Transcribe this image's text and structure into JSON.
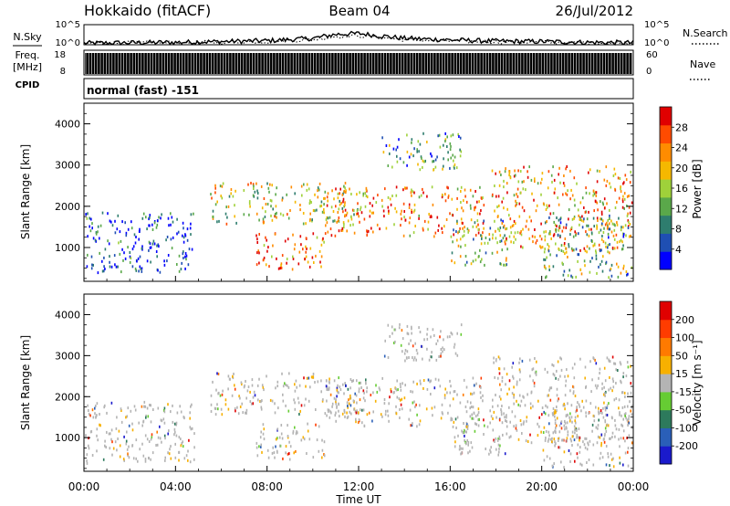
{
  "header": {
    "station": "Hokkaido (fitACF)",
    "beam": "Beam 04",
    "date": "26/Jul/2012"
  },
  "left_labels": {
    "nsky": "N.Sky",
    "freq_line1": "Freq.",
    "freq_line2": "[MHz]",
    "cpid": "CPID"
  },
  "right_labels": {
    "nsearch": "N.Search",
    "nave": "Nave"
  },
  "mode_text": "normal (fast) -151",
  "colors": {
    "power": [
      "#0000ff",
      "#1f4fb3",
      "#2e7d6e",
      "#5aa84a",
      "#9fd13a",
      "#f5b800",
      "#ff8c00",
      "#ff4b00",
      "#e00000"
    ],
    "velocity": [
      "#1a1acc",
      "#2a5fb8",
      "#2d7a5c",
      "#66cc33",
      "#b4b4b4",
      "#f7b000",
      "#ff7a00",
      "#ff3c00",
      "#e00000"
    ]
  },
  "chart_data": [
    {
      "type": "line",
      "name": "noise-panel",
      "left_label": "N.Sky",
      "right_label": "N.Search",
      "left_ticks": [
        "10^5",
        "10^0"
      ],
      "right_ticks": [
        "10^5",
        "10^0"
      ],
      "ylim_log10": [
        0,
        5
      ],
      "x_hours": [
        0,
        2,
        4,
        6,
        8,
        10,
        11,
        12,
        13,
        14,
        16,
        18,
        20,
        22,
        24
      ],
      "nsky_log10": [
        0.4,
        0.5,
        0.6,
        0.8,
        1.0,
        1.6,
        2.6,
        2.8,
        2.2,
        1.6,
        1.2,
        0.9,
        0.8,
        0.6,
        0.5
      ]
    },
    {
      "type": "bar",
      "name": "freq-nave-panel",
      "left_ticks": [
        "18",
        "8"
      ],
      "right_ticks": [
        "60",
        "0"
      ],
      "freq_mhz": [
        8,
        18
      ],
      "nave_range": [
        0,
        60
      ]
    },
    {
      "type": "heatmap",
      "name": "power-panel",
      "ylabel": "Slant Range [km]",
      "yticks": [
        "1000",
        "2000",
        "3000",
        "4000"
      ],
      "ylim": [
        180,
        4500
      ],
      "colorbar_label": "Power [dB]",
      "colorbar_ticks": [
        "28",
        "24",
        "20",
        "16",
        "12",
        "8",
        "4"
      ]
    },
    {
      "type": "heatmap",
      "name": "velocity-panel",
      "ylabel": "Slant Range [km]",
      "yticks": [
        "1000",
        "2000",
        "3000",
        "4000"
      ],
      "ylim": [
        180,
        4500
      ],
      "colorbar_label": "Velocity [m s⁻¹]",
      "colorbar_ticks": [
        "200",
        "100",
        "50",
        "15",
        "-15",
        "-50",
        "-100",
        "-200"
      ]
    }
  ],
  "xaxis": {
    "ticks": [
      "00:00",
      "04:00",
      "08:00",
      "12:00",
      "16:00",
      "20:00",
      "00:00"
    ],
    "label": "Time UT"
  },
  "regions": [
    {
      "t0": 0.0,
      "t1": 4.8,
      "r0": 400,
      "r1": 1900,
      "bias": 0.1
    },
    {
      "t0": 5.5,
      "t1": 12.0,
      "r0": 1600,
      "r1": 2600,
      "bias": 0.55
    },
    {
      "t0": 7.5,
      "t1": 10.5,
      "r0": 500,
      "r1": 1400,
      "bias": 0.85
    },
    {
      "t0": 10.5,
      "t1": 17.5,
      "r0": 1300,
      "r1": 2500,
      "bias": 0.75
    },
    {
      "t0": 13.0,
      "t1": 16.5,
      "r0": 2900,
      "r1": 3800,
      "bias": 0.3
    },
    {
      "t0": 16.0,
      "t1": 18.5,
      "r0": 600,
      "r1": 1700,
      "bias": 0.4
    },
    {
      "t0": 17.8,
      "t1": 24.0,
      "r0": 900,
      "r1": 3000,
      "bias": 0.7
    },
    {
      "t0": 20.0,
      "t1": 24.0,
      "r0": 300,
      "r1": 1800,
      "bias": 0.4
    }
  ]
}
